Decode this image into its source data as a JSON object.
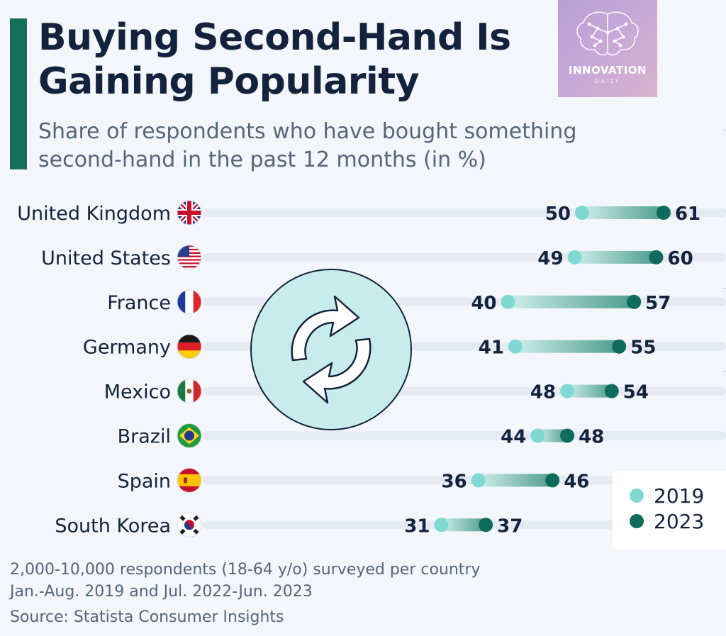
{
  "header": {
    "title": "Buying Second-Hand Is Gaining Popularity",
    "subtitle": "Share of respondents who have bought something second-hand in the past 12 months (in %)"
  },
  "logo": {
    "name": "INNOVATION",
    "sub": "DAILY",
    "icon": "brain-network-icon"
  },
  "center_icon": "refresh-arrows-icon",
  "colors": {
    "accent": "#14705a",
    "dot_2019": "#7fd8d2",
    "dot_2023": "#0f6b5b",
    "text_dark": "#13233d",
    "text_muted": "#56657b",
    "track": "#e6ebf3"
  },
  "chart_data": {
    "type": "dumbbell",
    "categories": [
      "United Kingdom",
      "United States",
      "France",
      "Germany",
      "Mexico",
      "Brazil",
      "Spain",
      "South Korea"
    ],
    "flags": [
      "uk-flag-icon",
      "us-flag-icon",
      "france-flag-icon",
      "germany-flag-icon",
      "mexico-flag-icon",
      "brazil-flag-icon",
      "spain-flag-icon",
      "south-korea-flag-icon"
    ],
    "series": [
      {
        "name": "2019",
        "values": [
          50,
          49,
          40,
          41,
          48,
          44,
          36,
          31
        ],
        "color": "#7fd8d2"
      },
      {
        "name": "2023",
        "values": [
          61,
          60,
          57,
          55,
          54,
          48,
          46,
          37
        ],
        "color": "#0f6b5b"
      }
    ],
    "unit": "%",
    "legend": "bottom-right"
  },
  "footer": {
    "note1": "2,000-10,000 respondents (18-64 y/o) surveyed per country",
    "note2": "Jan.-Aug. 2019 and Jul. 2022-Jun. 2023",
    "source": "Source: Statista Consumer Insights"
  }
}
